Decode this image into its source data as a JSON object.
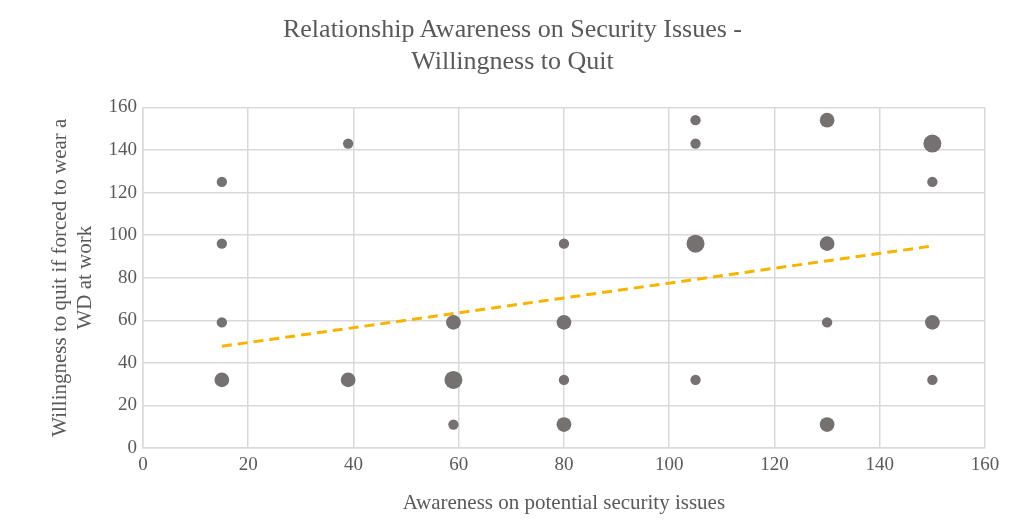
{
  "chart_data": {
    "type": "bubble",
    "title": [
      "Relationship Awareness on Security Issues -",
      "Willingness to Quit"
    ],
    "xlabel": "Awareness on potential security issues",
    "ylabel": [
      "Willingness to quit if forced to wear a",
      "WD at work"
    ],
    "xlim": [
      0,
      160
    ],
    "xticks": [
      0,
      20,
      40,
      60,
      80,
      100,
      120,
      140,
      160
    ],
    "ylim": [
      0,
      160
    ],
    "yticks": [
      0,
      20,
      40,
      60,
      80,
      100,
      120,
      140,
      160
    ],
    "grid": true,
    "series": [
      {
        "type": "bubble",
        "color": "#767171",
        "x": [
          15,
          15,
          15,
          15,
          39,
          39,
          59,
          59,
          59,
          80,
          80,
          80,
          80,
          105,
          105,
          105,
          105,
          130,
          130,
          130,
          130,
          150,
          150,
          150,
          150
        ],
        "values": [
          125,
          96,
          59,
          32,
          143,
          32,
          59,
          32,
          11,
          96,
          59,
          32,
          11,
          154,
          143,
          96,
          32,
          154,
          96,
          59,
          11,
          143,
          125,
          59,
          32
        ],
        "sizes": [
          0.33,
          0.33,
          0.33,
          0.67,
          0.33,
          0.67,
          0.67,
          1,
          0.33,
          0.33,
          0.67,
          0.33,
          0.67,
          0.33,
          0.33,
          1,
          0.33,
          0.67,
          0.67,
          0.33,
          0.67,
          1,
          0.33,
          0.67,
          0.33
        ]
      },
      {
        "type": "line",
        "color": "#f5b400",
        "x": [
          15,
          150
        ],
        "values": [
          47.8,
          94.9
        ],
        "line_style": "dashed",
        "marker": "none"
      }
    ]
  }
}
